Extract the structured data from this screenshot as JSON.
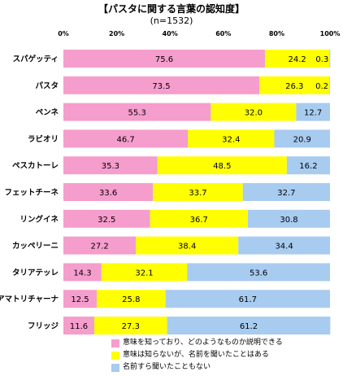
{
  "chart_data": {
    "type": "bar",
    "orientation": "horizontal",
    "stacked": true,
    "title": "【パスタに関する言葉の認知度】",
    "subtitle": "(n=1532)",
    "xlim": [
      0,
      100
    ],
    "x_ticks": [
      "0%",
      "20%",
      "40%",
      "60%",
      "80%",
      "100%"
    ],
    "categories": [
      "スパゲッティ",
      "パスタ",
      "ペンネ",
      "ラビオリ",
      "ペスカトーレ",
      "フェットチーネ",
      "リングイネ",
      "カッペリーニ",
      "タリアテッレ",
      "アマトリチャーナ",
      "フリッジ"
    ],
    "series": [
      {
        "name": "意味を知っており、どのようなものか説明できる",
        "color": "#f59dcc",
        "values": [
          75.6,
          73.5,
          55.3,
          46.7,
          35.3,
          33.6,
          32.5,
          27.2,
          14.3,
          12.5,
          11.6
        ]
      },
      {
        "name": "意味は知らないが、名前を聞いたことはある",
        "color": "#ffff00",
        "values": [
          24.2,
          26.3,
          32.0,
          32.4,
          48.5,
          33.7,
          36.7,
          38.4,
          32.1,
          25.8,
          27.3
        ]
      },
      {
        "name": "名前すら聞いたこともない",
        "color": "#a8cbf0",
        "values": [
          0.3,
          0.2,
          12.7,
          20.9,
          16.2,
          32.7,
          30.8,
          34.4,
          53.6,
          61.7,
          61.2
        ]
      }
    ],
    "value_labels": [
      [
        "75.6",
        "73.5",
        "55.3",
        "46.7",
        "35.3",
        "33.6",
        "32.5",
        "27.2",
        "14.3",
        "12.5",
        "11.6"
      ],
      [
        "24.2",
        "26.3",
        "32.0",
        "32.4",
        "48.5",
        "33.7",
        "36.7",
        "38.4",
        "32.1",
        "25.8",
        "27.3"
      ],
      [
        "0.3",
        "0.2",
        "12.7",
        "20.9",
        "16.2",
        "32.7",
        "30.8",
        "34.4",
        "53.6",
        "61.7",
        "61.2"
      ]
    ],
    "legend_position": "bottom",
    "grid": false
  }
}
